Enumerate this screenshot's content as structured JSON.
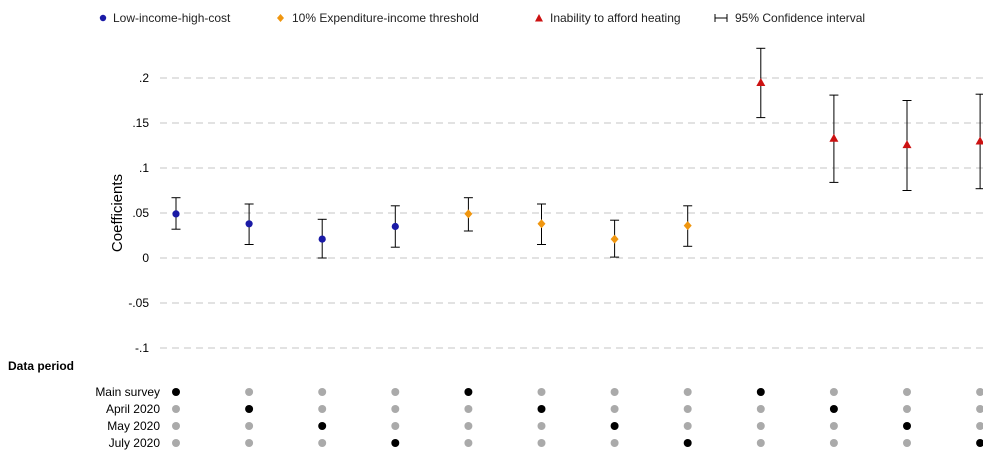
{
  "chart_data": {
    "type": "scatter",
    "ylabel": "Coefficients",
    "ylim": [
      -0.11,
      0.235
    ],
    "y_ticks": [
      0.2,
      0.15,
      0.1,
      0.05,
      0,
      -0.05,
      -0.1
    ],
    "y_tick_labels": [
      ".2",
      ".15",
      ".1",
      ".05",
      "0",
      "-.05",
      "-.1"
    ],
    "grid": "horizontal dashed",
    "legend_placement": "top",
    "legend": {
      "low_income_high_cost": "Low-income-high-cost",
      "expenditure_threshold": "10% Expenditure-income threshold",
      "inability_heating": "Inability to afford heating",
      "confidence_interval": "95% Confidence interval"
    },
    "series": [
      {
        "name": "Low-income-high-cost",
        "key": "low_income_high_cost",
        "color": "#1a1aa6",
        "marker": "circle",
        "x": [
          1,
          2,
          3,
          4
        ],
        "values": [
          0.049,
          0.038,
          0.021,
          0.035
        ],
        "ci_low": [
          0.032,
          0.015,
          0.0,
          0.012
        ],
        "ci_high": [
          0.067,
          0.06,
          0.043,
          0.058
        ]
      },
      {
        "name": "10% Expenditure-income threshold",
        "key": "expenditure_threshold",
        "color": "#f0960f",
        "marker": "diamond",
        "x": [
          5,
          6,
          7,
          8
        ],
        "values": [
          0.049,
          0.038,
          0.021,
          0.036
        ],
        "ci_low": [
          0.03,
          0.015,
          0.001,
          0.013
        ],
        "ci_high": [
          0.067,
          0.06,
          0.042,
          0.058
        ]
      },
      {
        "name": "Inability to afford heating",
        "key": "inability_heating",
        "color": "#cc1111",
        "marker": "triangle",
        "x": [
          9,
          10,
          11,
          12
        ],
        "values": [
          0.195,
          0.133,
          0.126,
          0.13
        ],
        "ci_low": [
          0.156,
          0.084,
          0.075,
          0.077
        ],
        "ci_high": [
          0.233,
          0.181,
          0.175,
          0.182
        ]
      }
    ],
    "data_period": {
      "title": "Data period",
      "rows": [
        "Main survey",
        "April 2020",
        "May 2020",
        "July 2020"
      ],
      "selected_row_per_column": [
        0,
        1,
        2,
        3,
        0,
        1,
        2,
        3,
        0,
        1,
        2,
        3
      ],
      "selected_color": "#000000",
      "unselected_color": "#aaaaaa"
    }
  }
}
